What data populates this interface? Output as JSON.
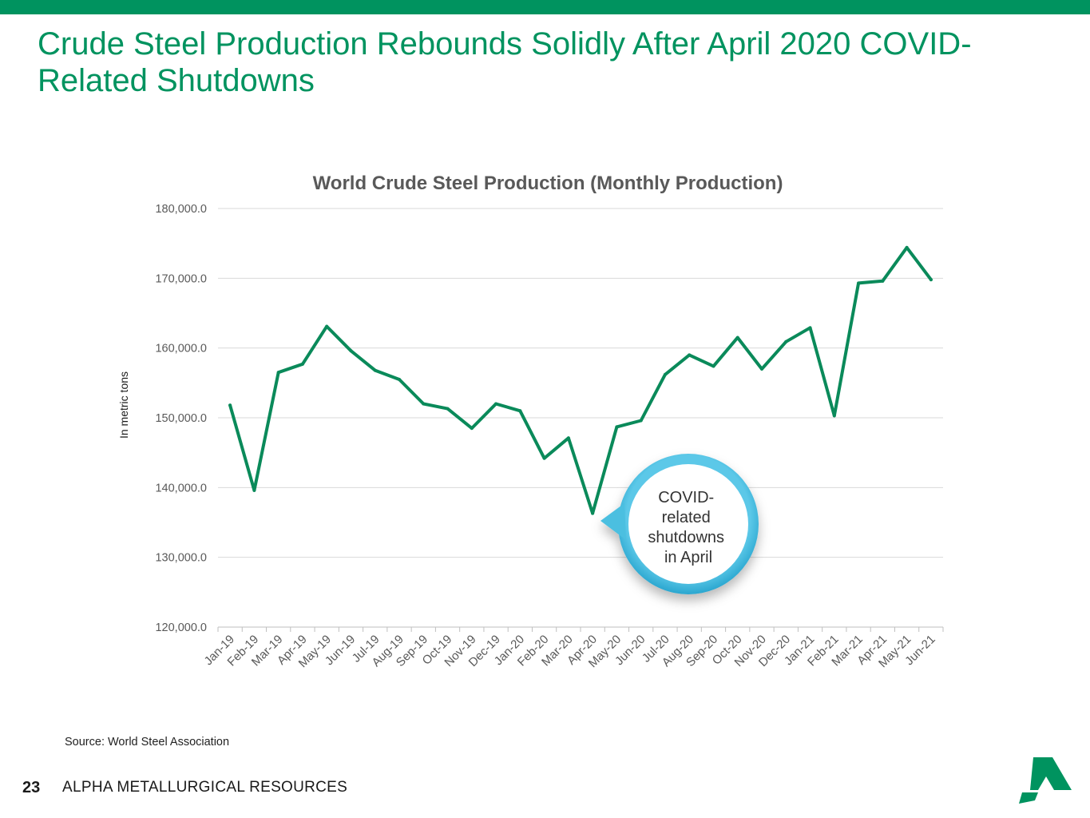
{
  "slide": {
    "title": "Crude Steel Production Rebounds Solidly After April 2020 COVID-Related Shutdowns",
    "source": "Source: World Steel Association",
    "page_number": "23",
    "company": "ALPHA METALLURGICAL RESOURCES"
  },
  "colors": {
    "brand_green": "#00935f",
    "line_green": "#0a8a5a",
    "callout_blue": "#4bbfe0",
    "grid": "#d9d9d9",
    "axis_text": "#595959"
  },
  "callout": {
    "lines": [
      "COVID-",
      "related",
      "shutdowns",
      "in April"
    ]
  },
  "chart_data": {
    "type": "line",
    "title": "World Crude Steel Production (Monthly Production)",
    "xlabel": "",
    "ylabel": "In metric tons",
    "ylim": [
      120000,
      180000
    ],
    "yticks": [
      180000,
      170000,
      160000,
      150000,
      140000,
      130000,
      120000
    ],
    "ytick_labels": [
      "180,000.0",
      "170,000.0",
      "160,000.0",
      "150,000.0",
      "140,000.0",
      "130,000.0",
      "120,000.0"
    ],
    "grid": true,
    "legend": "none",
    "categories": [
      "Jan-19",
      "Feb-19",
      "Mar-19",
      "Apr-19",
      "May-19",
      "Jun-19",
      "Jul-19",
      "Aug-19",
      "Sep-19",
      "Oct-19",
      "Nov-19",
      "Dec-19",
      "Jan-20",
      "Feb-20",
      "Mar-20",
      "Apr-20",
      "May-20",
      "Jun-20",
      "Jul-20",
      "Aug-20",
      "Sep-20",
      "Oct-20",
      "Nov-20",
      "Dec-20",
      "Jan-21",
      "Feb-21",
      "Mar-21",
      "Apr-21",
      "May-21",
      "Jun-21"
    ],
    "series": [
      {
        "name": "World Crude Steel Production",
        "values": [
          151800,
          139600,
          156500,
          157700,
          163100,
          159600,
          156800,
          155500,
          152000,
          151300,
          148500,
          152000,
          151000,
          144200,
          147100,
          136300,
          148700,
          149600,
          156200,
          159000,
          157400,
          161500,
          157000,
          160900,
          162900,
          150300,
          169300,
          169600,
          174400,
          169800
        ]
      }
    ]
  }
}
